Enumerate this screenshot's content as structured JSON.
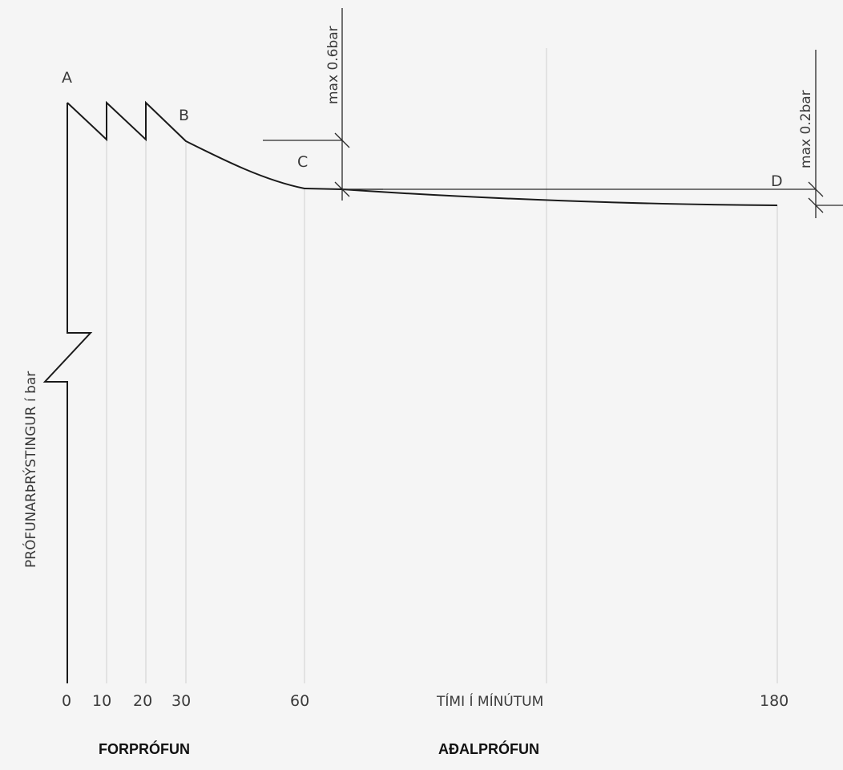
{
  "points": {
    "a": "A",
    "b": "B",
    "c": "C",
    "d": "D"
  },
  "y_axis_label": "PRÓFUNARÞRÝSTINGUR í bar",
  "x_axis_label": "TÍMI Í MÍNÚTUM",
  "x_ticks": [
    "0",
    "10",
    "20",
    "30",
    "60",
    "180"
  ],
  "dim_labels": {
    "max_c": "max 0.6bar",
    "max_d": "max 0.2bar"
  },
  "phases": {
    "pretest": "FORPRÓFUN",
    "main_test": "AÐALPRÓFUN"
  },
  "colors": {
    "ink": "#1a1a1a",
    "guide": "#cfcfcf",
    "background": "#f5f5f5"
  }
}
